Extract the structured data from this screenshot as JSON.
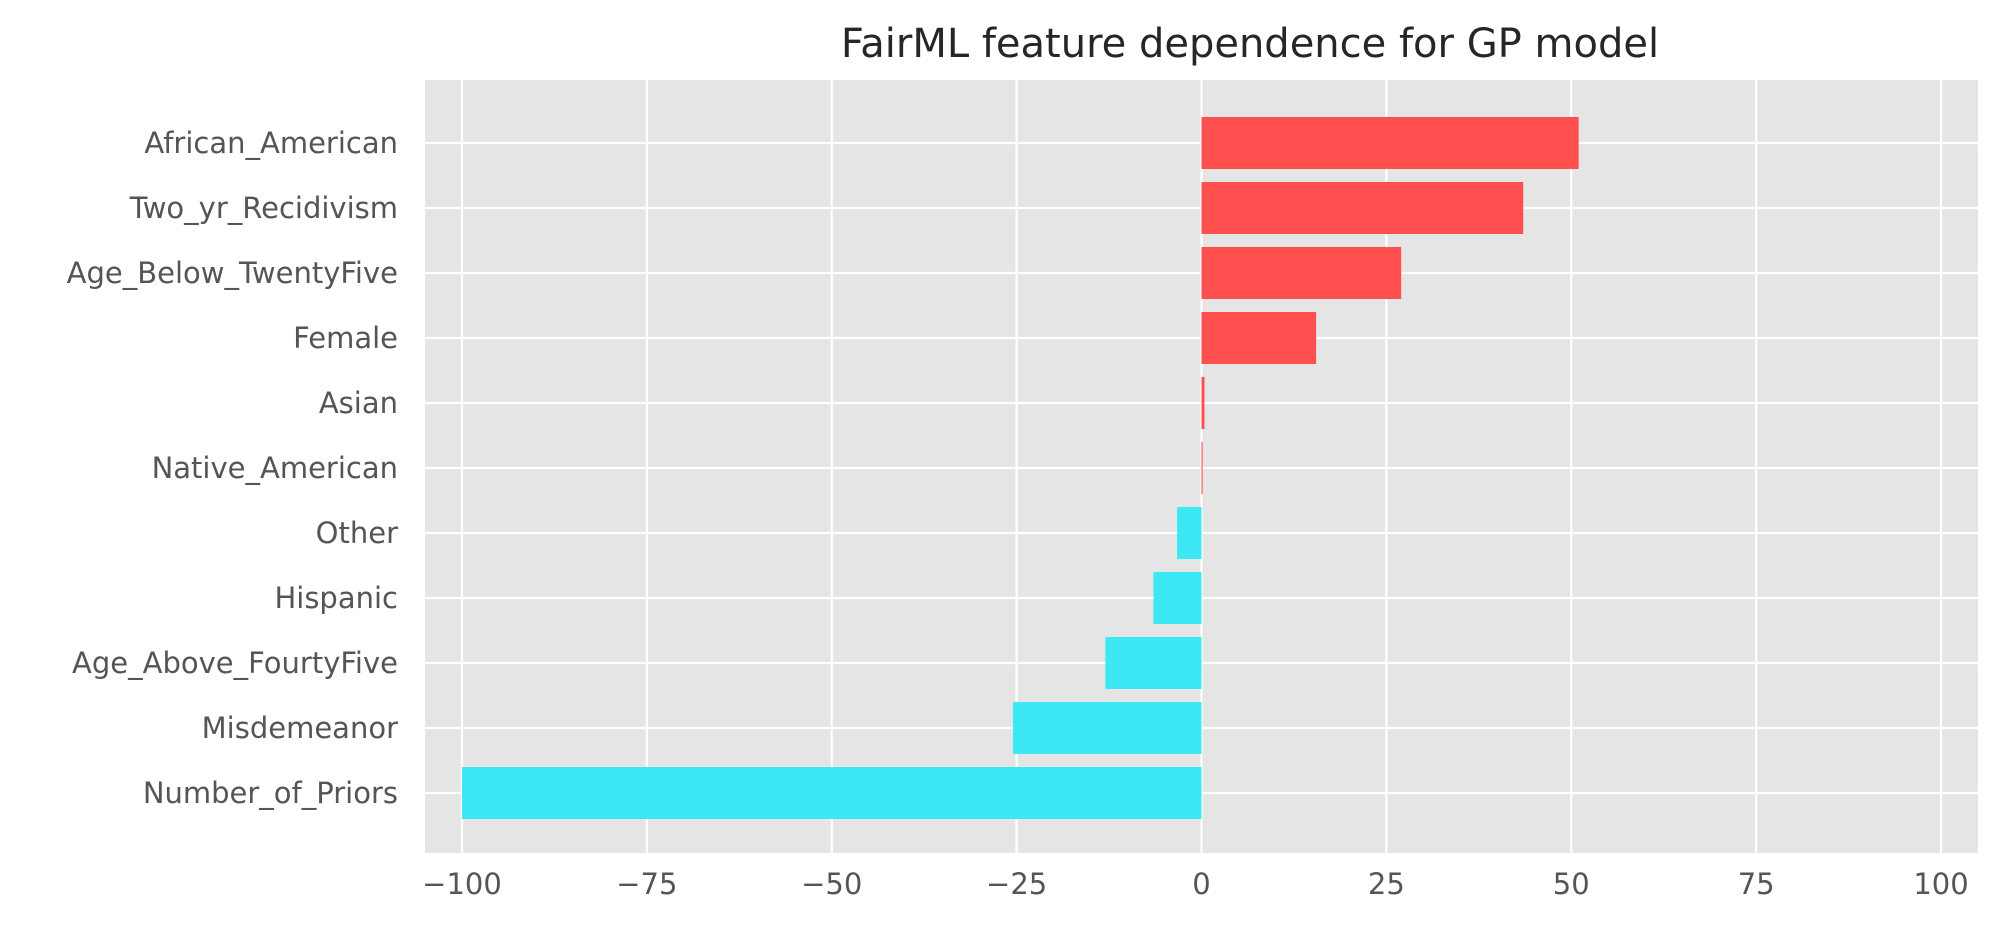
{
  "chart_data": {
    "type": "bar",
    "orientation": "horizontal",
    "title": "FairML feature dependence for GP model",
    "xlabel": "",
    "ylabel": "",
    "xlim": [
      -105,
      105
    ],
    "xticks": [
      -100,
      -75,
      -50,
      -25,
      0,
      25,
      50,
      75,
      100
    ],
    "xtick_labels": [
      "−100",
      "−75",
      "−50",
      "−25",
      "0",
      "25",
      "50",
      "75",
      "100"
    ],
    "grid": true,
    "legend": "none",
    "colors": {
      "positive": "#ff4f4f",
      "negative": "#3de8f5",
      "background": "#e5e5e5",
      "grid": "#ffffff"
    },
    "categories": [
      "African_American",
      "Two_yr_Recidivism",
      "Age_Below_TwentyFive",
      "Female",
      "Asian",
      "Native_American",
      "Other",
      "Hispanic",
      "Age_Above_FourtyFive",
      "Misdemeanor",
      "Number_of_Priors"
    ],
    "values": [
      51.0,
      43.5,
      27.0,
      15.5,
      0.4,
      0.15,
      -3.3,
      -6.5,
      -13.0,
      -25.5,
      -100.0
    ]
  }
}
